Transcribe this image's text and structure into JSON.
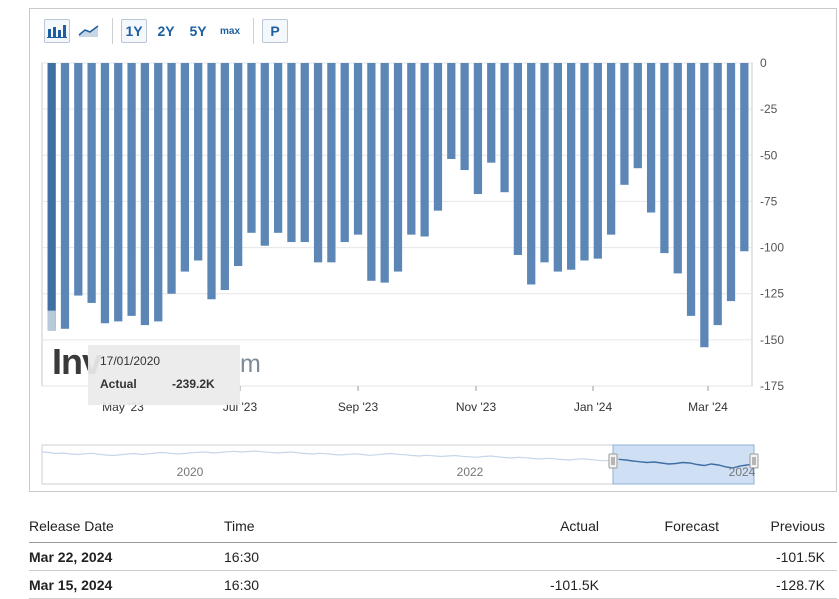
{
  "toolbar": {
    "buttons": [
      "1Y",
      "2Y",
      "5Y",
      "max",
      "P"
    ],
    "icons": [
      "bar-chart-icon",
      "line-chart-icon"
    ]
  },
  "chart_data": {
    "type": "bar",
    "title": "",
    "xlabel": "",
    "ylabel": "",
    "ylim": [
      -175,
      0
    ],
    "y_ticks": [
      0,
      -25,
      -50,
      -75,
      -100,
      -125,
      -150,
      -175
    ],
    "y_axis_position": "right",
    "x_tick_labels": [
      "May '23",
      "Jul '23",
      "Sep '23",
      "Nov '23",
      "Jan '24",
      "Mar '24"
    ],
    "grid": true,
    "bar_color": "#5b86b5",
    "values": [
      -145,
      -144,
      -126,
      -130,
      -141,
      -140,
      -137,
      -142,
      -140,
      -125,
      -113,
      -107,
      -128,
      -123,
      -110,
      -92,
      -99,
      -92,
      -97,
      -97,
      -108,
      -108,
      -97,
      -93,
      -118,
      -119,
      -113,
      -93,
      -94,
      -80,
      -52,
      -58,
      -71,
      -54,
      -70,
      -104,
      -120,
      -108,
      -113,
      -112,
      -107,
      -106,
      -93,
      -66,
      -57,
      -81,
      -103,
      -114,
      -137,
      -154,
      -142,
      -129,
      -102
    ],
    "highlight_index": 0,
    "tooltip": {
      "date": "17/01/2020",
      "label": "Actual",
      "value": "-239.2K"
    },
    "navigator": {
      "labels": [
        "2020",
        "2022",
        "2024"
      ],
      "series": [
        -55,
        -58,
        -62,
        -60,
        -64,
        -66,
        -63,
        -61,
        -65,
        -68,
        -70,
        -67,
        -64,
        -62,
        -66,
        -63,
        -60,
        -58,
        -61,
        -64,
        -62,
        -59,
        -57,
        -56,
        -60,
        -58,
        -55,
        -53,
        -56,
        -54,
        -52,
        -55,
        -57,
        -60,
        -58,
        -56,
        -59,
        -62,
        -64,
        -61,
        -63,
        -66,
        -68,
        -65,
        -63,
        -66,
        -69,
        -67,
        -64,
        -62,
        -65,
        -67,
        -70,
        -72,
        -69,
        -71,
        -74,
        -72,
        -70,
        -73,
        -75,
        -77,
        -74,
        -72,
        -75,
        -78,
        -80,
        -77,
        -79,
        -82,
        -84,
        -81,
        -83,
        -86,
        -88,
        -85,
        -83,
        -86,
        -89,
        -91,
        -88,
        -85,
        -88,
        -92,
        -95,
        -98,
        -96,
        -100,
        -104,
        -102,
        -98,
        -100,
        -106,
        -110,
        -104,
        -108,
        -115,
        -120,
        -112,
        -108,
        -102
      ]
    }
  },
  "table": {
    "headers": [
      "Release Date",
      "Time",
      "Actual",
      "Forecast",
      "Previous"
    ],
    "rows": [
      [
        "Mar 22, 2024",
        "16:30",
        "",
        "",
        "-101.5K"
      ],
      [
        "Mar 15, 2024",
        "16:30",
        "-101.5K",
        "",
        "-128.7K"
      ]
    ]
  },
  "watermark": {
    "left": "Inv",
    "right": "m"
  }
}
